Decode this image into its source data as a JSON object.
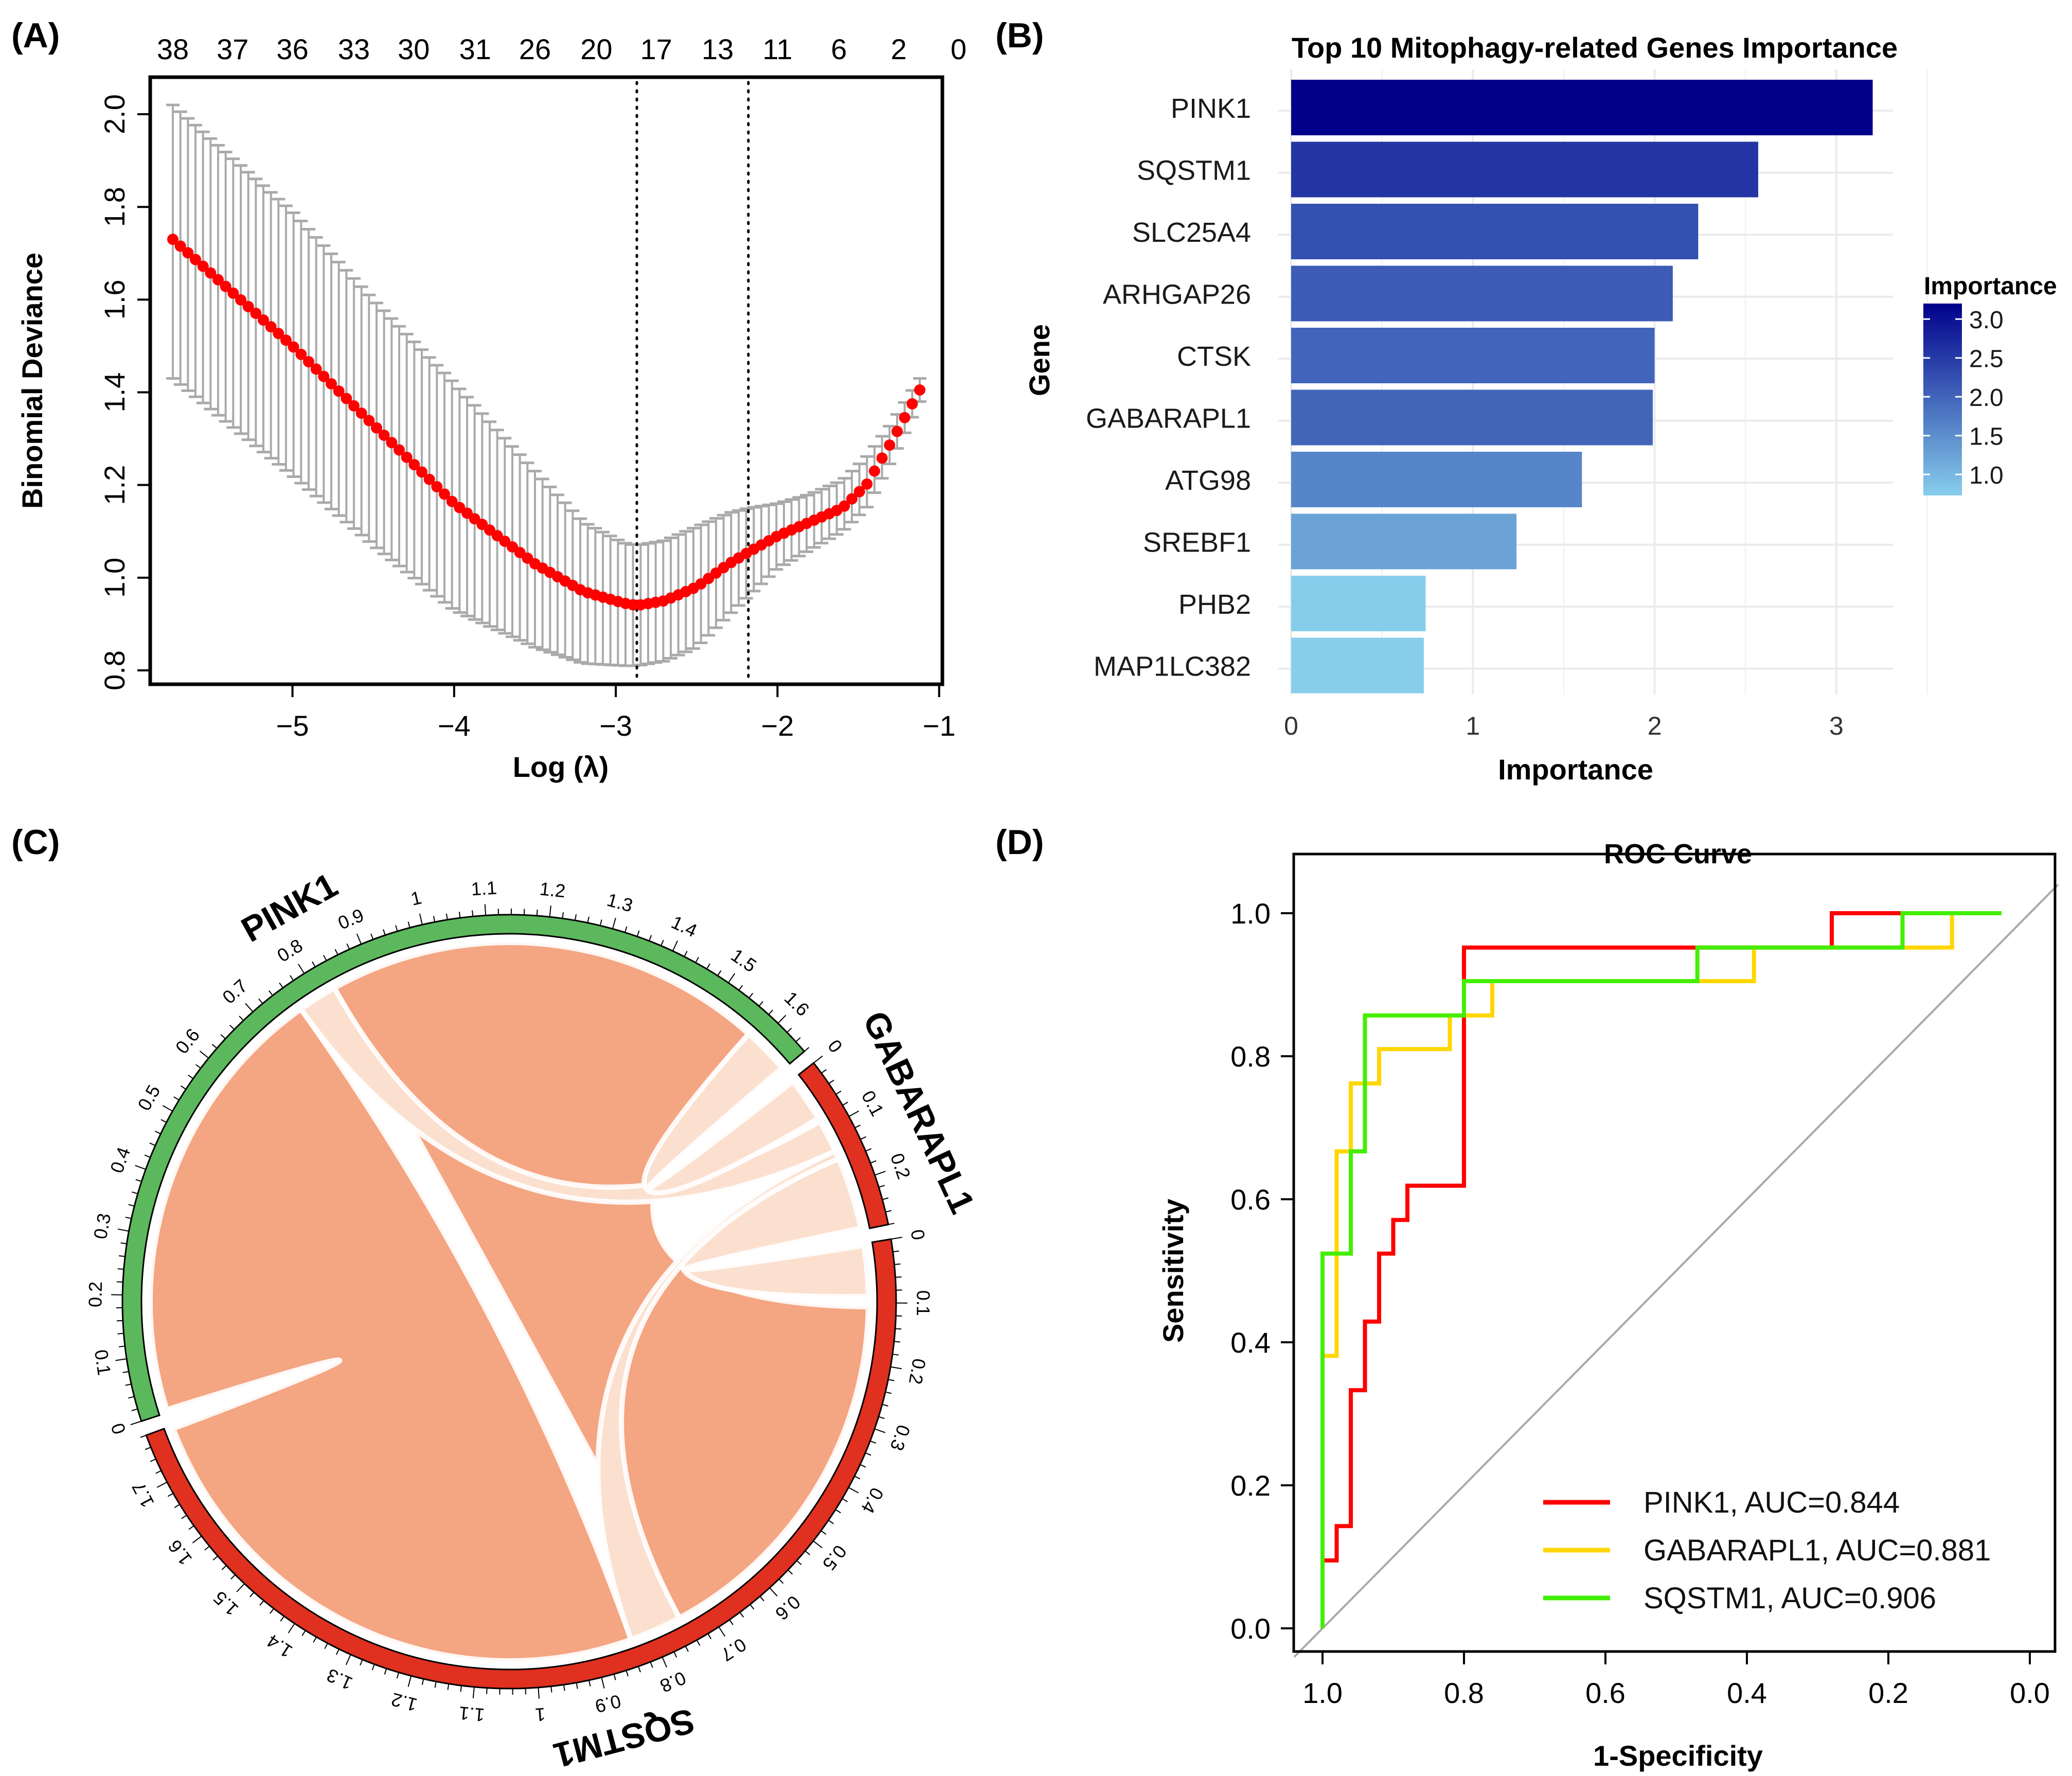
{
  "panels": {
    "a": "(A)",
    "b": "(B)",
    "c": "(C)",
    "d": "(D)"
  },
  "chart_data": [
    {
      "id": "A",
      "type": "scatter",
      "title": "",
      "xlabel": "Log (λ)",
      "ylabel": "Binomial Deviance",
      "xlim": [
        -5.88,
        -0.98
      ],
      "ylim": [
        0.77,
        2.08
      ],
      "xticks": [
        -5,
        -4,
        -3,
        -2,
        -1
      ],
      "xtick_labels": [
        "−5",
        "−4",
        "−3",
        "−2",
        "−1"
      ],
      "yticks": [
        0.8,
        1.0,
        1.2,
        1.4,
        1.6,
        1.8,
        2.0
      ],
      "ytick_labels": [
        "0.8",
        "1.0",
        "1.2",
        "1.4",
        "1.6",
        "1.8",
        "2.0"
      ],
      "top_axis_labels": [
        "38",
        "37",
        "36",
        "33",
        "30",
        "31",
        "26",
        "20",
        "17",
        "13",
        "11",
        "6",
        "2",
        "0"
      ],
      "top_axis_positions": [
        -5.74,
        -5.37,
        -5.0,
        -4.62,
        -4.25,
        -3.87,
        -3.5,
        -3.12,
        -2.75,
        -2.37,
        -2.0,
        -1.62,
        -1.25,
        -0.88
      ],
      "vlines": [
        -2.87,
        -2.18
      ],
      "curve_knots": {
        "x": [
          -5.74,
          -5.0,
          -4.5,
          -4.0,
          -3.5,
          -3.2,
          -2.95,
          -2.87,
          -2.7,
          -2.5,
          -2.3,
          -2.18,
          -2.0,
          -1.8,
          -1.6,
          -1.45,
          -1.3,
          -1.12
        ],
        "mean": [
          1.73,
          1.5,
          1.33,
          1.16,
          1.03,
          0.97,
          0.945,
          0.94,
          0.95,
          0.98,
          1.03,
          1.055,
          1.09,
          1.12,
          1.15,
          1.2,
          1.29,
          1.405
        ],
        "upper": [
          2.02,
          1.79,
          1.6,
          1.42,
          1.23,
          1.12,
          1.075,
          1.07,
          1.08,
          1.11,
          1.14,
          1.15,
          1.16,
          1.18,
          1.21,
          1.26,
          1.33,
          1.43
        ],
        "lower": [
          1.43,
          1.22,
          1.07,
          0.93,
          0.85,
          0.815,
          0.81,
          0.81,
          0.82,
          0.85,
          0.92,
          0.96,
          1.02,
          1.06,
          1.1,
          1.15,
          1.25,
          1.38
        ]
      },
      "n_points": 100,
      "point_color": "#ff0000",
      "errorbar_color": "#aaaaaa"
    },
    {
      "id": "B",
      "type": "bar",
      "orientation": "horizontal",
      "title": "Top 10 Mitophagy-related Genes Importance",
      "xlabel": "Importance",
      "ylabel": "Gene",
      "categories": [
        "PINK1",
        "SQSTM1",
        "SLC25A4",
        "ARHGAP26",
        "CTSK",
        "GABARAPL1",
        "ATG98",
        "SREBF1",
        "PHB2",
        "MAP1LC382"
      ],
      "values": [
        3.2,
        2.57,
        2.24,
        2.1,
        2.0,
        1.99,
        1.6,
        1.24,
        0.74,
        0.73
      ],
      "xlim": [
        0,
        3.4
      ],
      "xticks": [
        0,
        1,
        2,
        3
      ],
      "xtick_labels": [
        "0",
        "1",
        "2",
        "3"
      ],
      "grid": true,
      "legend": {
        "title": "Importance",
        "ticks": [
          "3.0",
          "2.5",
          "2.0",
          "1.5",
          "1.0"
        ],
        "tick_values": [
          3.0,
          2.5,
          2.0,
          1.5,
          1.0
        ],
        "range": [
          0.73,
          3.2
        ],
        "low_color": "#87ceeb",
        "high_color": "#00008b",
        "placement": "right"
      }
    },
    {
      "id": "C",
      "type": "chord",
      "sectors": [
        {
          "name": "PINK1",
          "size": 1.66,
          "color": "#5cb85c",
          "tick_labels": [
            "0",
            "0.1",
            "0.2",
            "0.3",
            "0.4",
            "0.5",
            "0.6",
            "0.7",
            "0.8",
            "0.9",
            "1",
            "1.1",
            "1.2",
            "1.3",
            "1.4",
            "1.5",
            "1.6"
          ]
        },
        {
          "name": "GABARAPL1",
          "size": 0.28,
          "color": "#e03020",
          "tick_labels": [
            "0",
            "0.1",
            "0.2"
          ]
        },
        {
          "name": "SQSTM1",
          "size": 1.78,
          "color": "#e03020",
          "tick_labels": [
            "0",
            "0.1",
            "0.2",
            "0.3",
            "0.4",
            "0.5",
            "0.6",
            "0.7",
            "0.8",
            "0.9",
            "1",
            "1.1",
            "1.2",
            "1.3",
            "1.4",
            "1.5",
            "1.6",
            "1.7"
          ]
        }
      ],
      "links": [
        {
          "from": "PINK1",
          "to": "SQSTM1",
          "color": "#f4a582"
        },
        {
          "from": "PINK1",
          "to": "GABARAPL1",
          "color": "#fbe0d0"
        },
        {
          "from": "SQSTM1",
          "to": "GABARAPL1",
          "color": "#fbe0d0"
        }
      ]
    },
    {
      "id": "D",
      "type": "line",
      "title": "ROC Curve",
      "xlabel": "1-Specificity",
      "ylabel": "Sensitivity",
      "xlim": [
        1.04,
        -0.04
      ],
      "ylim": [
        -0.04,
        1.04
      ],
      "xticks": [
        1.0,
        0.8,
        0.6,
        0.4,
        0.2,
        0.0
      ],
      "xtick_labels": [
        "1.0",
        "0.8",
        "0.6",
        "0.4",
        "0.2",
        "0.0"
      ],
      "yticks": [
        0.0,
        0.2,
        0.4,
        0.6,
        0.8,
        1.0
      ],
      "ytick_labels": [
        "0.0",
        "0.2",
        "0.4",
        "0.6",
        "0.8",
        "1.0"
      ],
      "legend_placement": "bottom-right",
      "series": [
        {
          "name": "PINK1, AUC=0.844",
          "color": "#ff0000",
          "x": [
            1.0,
            1.0,
            0.98,
            0.98,
            0.96,
            0.96,
            0.94,
            0.94,
            0.92,
            0.92,
            0.9,
            0.9,
            0.88,
            0.88,
            0.86,
            0.86,
            0.8,
            0.8,
            0.28,
            0.28,
            0.18,
            0.04
          ],
          "y": [
            0.0,
            0.095,
            0.095,
            0.143,
            0.143,
            0.333,
            0.333,
            0.429,
            0.429,
            0.524,
            0.524,
            0.571,
            0.571,
            0.619,
            0.619,
            0.619,
            0.619,
            0.952,
            0.952,
            1.0,
            1.0,
            1.0
          ]
        },
        {
          "name": "GABARAPL1, AUC=0.881",
          "color": "#ffd700",
          "x": [
            1.0,
            1.0,
            0.98,
            0.98,
            0.96,
            0.96,
            0.92,
            0.92,
            0.82,
            0.82,
            0.76,
            0.76,
            0.39,
            0.39,
            0.11,
            0.11,
            0.04
          ],
          "y": [
            0.0,
            0.381,
            0.381,
            0.667,
            0.667,
            0.762,
            0.762,
            0.81,
            0.81,
            0.857,
            0.857,
            0.905,
            0.905,
            0.952,
            0.952,
            1.0,
            1.0
          ]
        },
        {
          "name": "SQSTM1, AUC=0.906",
          "color": "#44ee00",
          "x": [
            1.0,
            1.0,
            0.96,
            0.96,
            0.94,
            0.94,
            0.8,
            0.8,
            0.47,
            0.47,
            0.18,
            0.18,
            0.04
          ],
          "y": [
            0.0,
            0.524,
            0.524,
            0.667,
            0.667,
            0.857,
            0.857,
            0.905,
            0.905,
            0.952,
            0.952,
            1.0,
            1.0
          ]
        }
      ],
      "reference_line": {
        "from": [
          1.04,
          -0.04
        ],
        "to": [
          -0.04,
          1.04
        ],
        "color": "#aaaaaa"
      }
    }
  ]
}
